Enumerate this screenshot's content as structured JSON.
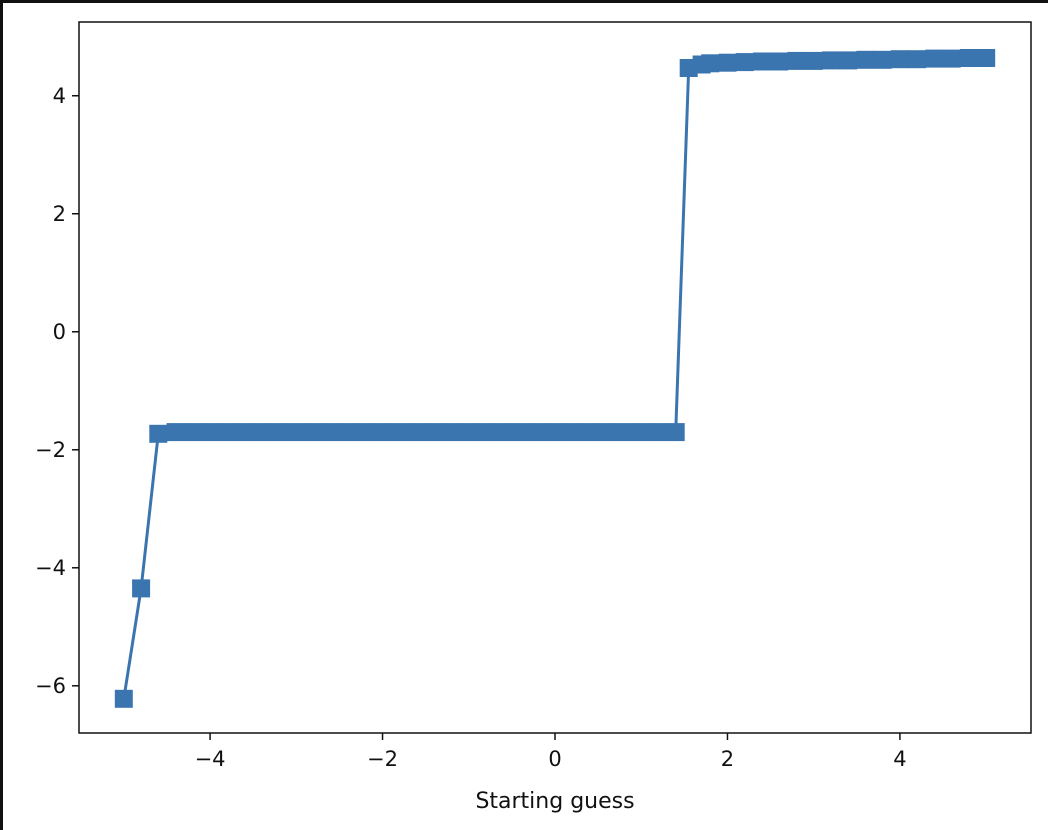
{
  "chart_data": {
    "type": "line",
    "title": "",
    "xlabel": "Starting guess",
    "ylabel": "",
    "xlim": [
      -5.52,
      5.52
    ],
    "ylim": [
      -6.8,
      5.25
    ],
    "x_ticks": [
      -4,
      -2,
      0,
      2,
      4
    ],
    "y_ticks": [
      -6,
      -4,
      -2,
      0,
      2,
      4
    ],
    "x_tick_labels": [
      "−4",
      "−2",
      "0",
      "2",
      "4"
    ],
    "y_tick_labels": [
      "−6",
      "−4",
      "−2",
      "0",
      "2",
      "4"
    ],
    "grid": false,
    "legend": "none",
    "series": [
      {
        "color": "#3a75b0",
        "marker": "square",
        "x": [
          -5.0,
          -4.8,
          -4.6,
          -4.4,
          -4.2,
          -4.0,
          -3.8,
          -3.6,
          -3.4,
          -3.2,
          -3.0,
          -2.8,
          -2.6,
          -2.4,
          -2.2,
          -2.0,
          -1.8,
          -1.6,
          -1.4,
          -1.2,
          -1.0,
          -0.8,
          -0.6,
          -0.4,
          -0.2,
          0.0,
          0.2,
          0.4,
          0.6,
          0.8,
          1.0,
          1.2,
          1.4,
          1.55,
          1.7,
          1.8,
          2.0,
          2.2,
          2.4,
          2.6,
          2.8,
          3.0,
          3.2,
          3.4,
          3.6,
          3.8,
          4.0,
          4.2,
          4.4,
          4.6,
          4.8,
          5.0
        ],
        "y": [
          -6.22,
          -4.35,
          -1.73,
          -1.7,
          -1.7,
          -1.7,
          -1.7,
          -1.7,
          -1.7,
          -1.7,
          -1.7,
          -1.7,
          -1.7,
          -1.7,
          -1.7,
          -1.7,
          -1.7,
          -1.7,
          -1.7,
          -1.7,
          -1.7,
          -1.7,
          -1.7,
          -1.7,
          -1.7,
          -1.7,
          -1.7,
          -1.7,
          -1.7,
          -1.7,
          -1.7,
          -1.7,
          -1.7,
          4.47,
          4.53,
          4.55,
          4.56,
          4.57,
          4.58,
          4.58,
          4.59,
          4.59,
          4.6,
          4.6,
          4.61,
          4.61,
          4.62,
          4.62,
          4.63,
          4.63,
          4.64,
          4.64
        ]
      }
    ]
  }
}
